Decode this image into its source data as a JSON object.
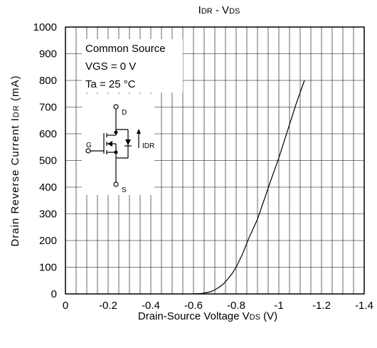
{
  "chart_data": {
    "type": "line",
    "title": {
      "main": "I",
      "main_sub": "DR",
      "sep": " - V",
      "sep_sub": "DS"
    },
    "xlabel": {
      "main": "Drain-Source Voltage  V",
      "sub": "DS",
      "unit": " (V)"
    },
    "ylabel": {
      "main": "Drain Reverse Current  I",
      "sub": "DR",
      "unit": " (mA)"
    },
    "xlim": [
      0,
      -1.4
    ],
    "ylim": [
      0,
      1000
    ],
    "x_ticks": [
      0,
      -0.2,
      -0.4,
      -0.6,
      -0.8,
      -1,
      -1.2,
      -1.4
    ],
    "x_tick_labels": [
      "0",
      "-0.2",
      "-0.4",
      "-0.6",
      "-0.8",
      "-1",
      "-1.2",
      "-1.4"
    ],
    "y_ticks": [
      0,
      100,
      200,
      300,
      400,
      500,
      600,
      700,
      800,
      900,
      1000
    ],
    "y_tick_labels": [
      "0",
      "100",
      "200",
      "300",
      "400",
      "500",
      "600",
      "700",
      "800",
      "900",
      "1000"
    ],
    "grid": true,
    "minor_grid_x": 0.05,
    "series": [
      {
        "x": [
          -0.6,
          -0.64,
          -0.66,
          -0.68,
          -0.7,
          -0.72,
          -0.74,
          -0.76,
          -0.78,
          -0.8,
          -0.83,
          -0.86,
          -0.9,
          -0.93,
          -0.96,
          -1.0,
          -1.04,
          -1.08,
          -1.12
        ],
        "y": [
          0,
          2,
          5,
          8,
          15,
          25,
          37,
          55,
          75,
          100,
          150,
          210,
          280,
          350,
          420,
          510,
          610,
          710,
          800
        ]
      }
    ],
    "annotations": {
      "conditions": [
        "Common Source",
        "VGS = 0 V",
        "Ta = 25 °C"
      ],
      "circuit_labels": {
        "drain": "D",
        "gate": "G",
        "source": "S",
        "current": "IDR"
      }
    }
  }
}
